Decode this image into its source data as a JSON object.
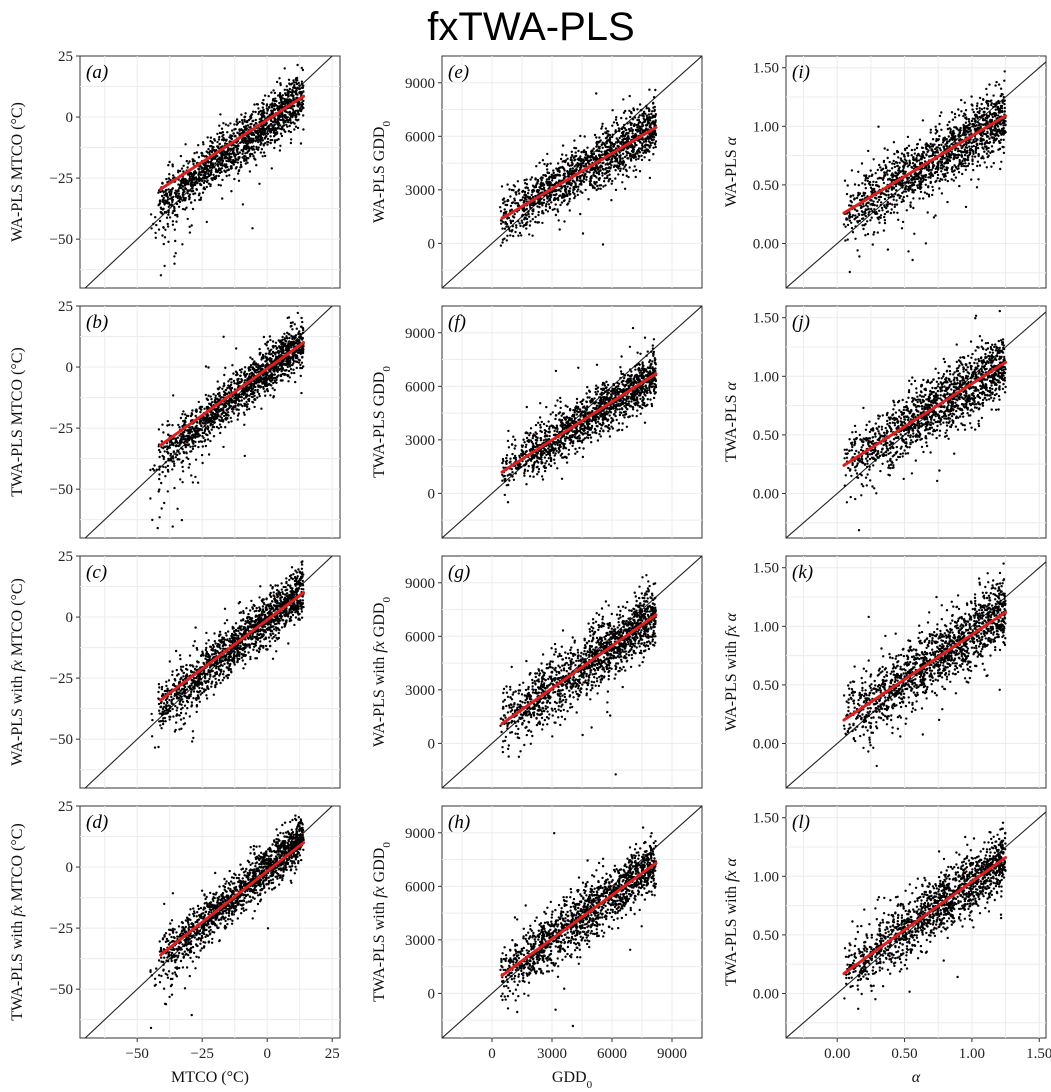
{
  "title": "fxTWA-PLS",
  "chart_data": [
    {
      "id": "a",
      "type": "scatter",
      "letter": "(a)",
      "ylabel_parts": [
        {
          "t": "WA-PLS MTCO (°C)"
        }
      ],
      "xlabel_parts": [],
      "xlim": [
        -72,
        28
      ],
      "ylim": [
        -70,
        25
      ],
      "xticks": [
        -50,
        -25,
        0,
        25
      ],
      "yticks": [
        -50,
        -25,
        0,
        25
      ],
      "show_xticks": false,
      "fit": {
        "x": [
          -41,
          14
        ],
        "y": [
          -29.5,
          8.5
        ]
      },
      "x_range": [
        -42,
        14
      ],
      "slope": 0.8,
      "intercept": -2.5,
      "spread": 5,
      "outlier_x": [
        -45,
        -25
      ]
    },
    {
      "id": "b",
      "type": "scatter",
      "letter": "(b)",
      "ylabel_parts": [
        {
          "t": "TWA-PLS MTCO (°C)"
        }
      ],
      "xlabel_parts": [],
      "xlim": [
        -72,
        28
      ],
      "ylim": [
        -70,
        25
      ],
      "xticks": [
        -50,
        -25,
        0,
        25
      ],
      "yticks": [
        -50,
        -25,
        0,
        25
      ],
      "show_xticks": false,
      "fit": {
        "x": [
          -41,
          14
        ],
        "y": [
          -32,
          10
        ]
      },
      "x_range": [
        -42,
        14
      ],
      "slope": 0.85,
      "intercept": -1.5,
      "spread": 4.5,
      "outlier_x": [
        -45,
        -25
      ]
    },
    {
      "id": "c",
      "type": "scatter",
      "letter": "(c)",
      "ylabel_parts": [
        {
          "t": "WA-PLS with "
        },
        {
          "t": "fx",
          "i": true
        },
        {
          "t": " MTCO (°C)"
        }
      ],
      "xlabel_parts": [],
      "xlim": [
        -72,
        28
      ],
      "ylim": [
        -70,
        25
      ],
      "xticks": [
        -50,
        -25,
        0,
        25
      ],
      "yticks": [
        -50,
        -25,
        0,
        25
      ],
      "show_xticks": false,
      "fit": {
        "x": [
          -41,
          14
        ],
        "y": [
          -34,
          10
        ]
      },
      "x_range": [
        -42,
        14
      ],
      "slope": 0.87,
      "intercept": -1,
      "spread": 5,
      "outlier_x": [
        -45,
        -25
      ]
    },
    {
      "id": "d",
      "type": "scatter",
      "letter": "(d)",
      "ylabel_parts": [
        {
          "t": "TWA-PLS with "
        },
        {
          "t": "fx",
          "i": true
        },
        {
          "t": " MTCO (°C)"
        }
      ],
      "xlabel_parts": [
        {
          "t": "MTCO (°C)"
        }
      ],
      "xlim": [
        -72,
        28
      ],
      "ylim": [
        -70,
        25
      ],
      "xticks": [
        -50,
        -25,
        0,
        25
      ],
      "yticks": [
        -50,
        -25,
        0,
        25
      ],
      "show_xticks": true,
      "fit": {
        "x": [
          -41,
          14
        ],
        "y": [
          -36,
          10
        ]
      },
      "x_range": [
        -42,
        14
      ],
      "slope": 0.9,
      "intercept": -0.5,
      "spread": 4.5,
      "outlier_x": [
        -45,
        -25
      ]
    },
    {
      "id": "e",
      "type": "scatter",
      "letter": "(e)",
      "ylabel_parts": [
        {
          "t": "WA-PLS GDD"
        },
        {
          "t": "0",
          "sub": true
        }
      ],
      "xlabel_parts": [],
      "xlim": [
        -2500,
        10500
      ],
      "ylim": [
        -2500,
        10500
      ],
      "xticks": [
        0,
        3000,
        6000,
        9000
      ],
      "yticks": [
        0,
        3000,
        6000,
        9000
      ],
      "show_xticks": false,
      "fit": {
        "x": [
          500,
          8200
        ],
        "y": [
          1400,
          6500
        ]
      },
      "x_range": [
        400,
        8200
      ],
      "slope": 0.66,
      "intercept": 1100,
      "spread": 750,
      "outlier_x": [
        0,
        0
      ]
    },
    {
      "id": "f",
      "type": "scatter",
      "letter": "(f)",
      "ylabel_parts": [
        {
          "t": "TWA-PLS GDD"
        },
        {
          "t": "0",
          "sub": true
        }
      ],
      "xlabel_parts": [],
      "xlim": [
        -2500,
        10500
      ],
      "ylim": [
        -2500,
        10500
      ],
      "xticks": [
        0,
        3000,
        6000,
        9000
      ],
      "yticks": [
        0,
        3000,
        6000,
        9000
      ],
      "show_xticks": false,
      "fit": {
        "x": [
          500,
          8200
        ],
        "y": [
          1200,
          6700
        ]
      },
      "x_range": [
        400,
        8200
      ],
      "slope": 0.71,
      "intercept": 850,
      "spread": 700,
      "outlier_x": [
        0,
        0
      ]
    },
    {
      "id": "g",
      "type": "scatter",
      "letter": "(g)",
      "ylabel_parts": [
        {
          "t": "WA-PLS with "
        },
        {
          "t": "fx",
          "i": true
        },
        {
          "t": " GDD"
        },
        {
          "t": "0",
          "sub": true
        }
      ],
      "xlabel_parts": [],
      "xlim": [
        -2500,
        10500
      ],
      "ylim": [
        -2500,
        10500
      ],
      "xticks": [
        0,
        3000,
        6000,
        9000
      ],
      "yticks": [
        0,
        3000,
        6000,
        9000
      ],
      "show_xticks": false,
      "fit": {
        "x": [
          500,
          8200
        ],
        "y": [
          1100,
          7200
        ]
      },
      "x_range": [
        400,
        8200
      ],
      "slope": 0.79,
      "intercept": 700,
      "spread": 850,
      "outlier_x": [
        0,
        0
      ]
    },
    {
      "id": "h",
      "type": "scatter",
      "letter": "(h)",
      "ylabel_parts": [
        {
          "t": "TWA-PLS with "
        },
        {
          "t": "fx",
          "i": true
        },
        {
          "t": " GDD"
        },
        {
          "t": "0",
          "sub": true
        }
      ],
      "xlabel_parts": [
        {
          "t": "GDD"
        },
        {
          "t": "0",
          "sub": true
        }
      ],
      "xlim": [
        -2500,
        10500
      ],
      "ylim": [
        -2500,
        10500
      ],
      "xticks": [
        0,
        3000,
        6000,
        9000
      ],
      "yticks": [
        0,
        3000,
        6000,
        9000
      ],
      "show_xticks": true,
      "fit": {
        "x": [
          500,
          8200
        ],
        "y": [
          1000,
          7300
        ]
      },
      "x_range": [
        400,
        8200
      ],
      "slope": 0.82,
      "intercept": 600,
      "spread": 800,
      "outlier_x": [
        0,
        0
      ]
    },
    {
      "id": "i",
      "type": "scatter",
      "letter": "(i)",
      "ylabel_parts": [
        {
          "t": "WA-PLS "
        },
        {
          "t": "α",
          "i": true
        }
      ],
      "xlabel_parts": [],
      "xlim": [
        -0.38,
        1.55
      ],
      "ylim": [
        -0.38,
        1.6
      ],
      "xticks": [
        0,
        0.5,
        1,
        1.5
      ],
      "xtick_labels": [
        "0.00",
        "0.50",
        "1.00",
        "1.50"
      ],
      "yticks": [
        0,
        0.5,
        1,
        1.5
      ],
      "ytick_labels": [
        "0.00",
        "0.50",
        "1.00",
        "1.50"
      ],
      "show_xticks": false,
      "fit": {
        "x": [
          0.05,
          1.25
        ],
        "y": [
          0.26,
          1.09
        ]
      },
      "x_range": [
        0.05,
        1.25
      ],
      "slope": 0.69,
      "intercept": 0.22,
      "spread": 0.13,
      "outlier_x": [
        0,
        0
      ]
    },
    {
      "id": "j",
      "type": "scatter",
      "letter": "(j)",
      "ylabel_parts": [
        {
          "t": "TWA-PLS "
        },
        {
          "t": "α",
          "i": true
        }
      ],
      "xlabel_parts": [],
      "xlim": [
        -0.38,
        1.55
      ],
      "ylim": [
        -0.38,
        1.6
      ],
      "xticks": [
        0,
        0.5,
        1,
        1.5
      ],
      "xtick_labels": [
        "0.00",
        "0.50",
        "1.00",
        "1.50"
      ],
      "yticks": [
        0,
        0.5,
        1,
        1.5
      ],
      "ytick_labels": [
        "0.00",
        "0.50",
        "1.00",
        "1.50"
      ],
      "show_xticks": false,
      "fit": {
        "x": [
          0.05,
          1.25
        ],
        "y": [
          0.24,
          1.12
        ]
      },
      "x_range": [
        0.05,
        1.25
      ],
      "slope": 0.73,
      "intercept": 0.2,
      "spread": 0.13,
      "outlier_x": [
        0,
        0
      ]
    },
    {
      "id": "k",
      "type": "scatter",
      "letter": "(k)",
      "ylabel_parts": [
        {
          "t": "WA-PLS with "
        },
        {
          "t": "fx",
          "i": true
        },
        {
          "t": " "
        },
        {
          "t": "α",
          "i": true
        }
      ],
      "xlabel_parts": [],
      "xlim": [
        -0.38,
        1.55
      ],
      "ylim": [
        -0.38,
        1.6
      ],
      "xticks": [
        0,
        0.5,
        1,
        1.5
      ],
      "xtick_labels": [
        "0.00",
        "0.50",
        "1.00",
        "1.50"
      ],
      "yticks": [
        0,
        0.5,
        1,
        1.5
      ],
      "ytick_labels": [
        "0.00",
        "0.50",
        "1.00",
        "1.50"
      ],
      "show_xticks": false,
      "fit": {
        "x": [
          0.05,
          1.25
        ],
        "y": [
          0.2,
          1.12
        ]
      },
      "x_range": [
        0.05,
        1.25
      ],
      "slope": 0.77,
      "intercept": 0.16,
      "spread": 0.14,
      "outlier_x": [
        0,
        0
      ]
    },
    {
      "id": "l",
      "type": "scatter",
      "letter": "(l)",
      "ylabel_parts": [
        {
          "t": "TWA-PLS with "
        },
        {
          "t": "fx",
          "i": true
        },
        {
          "t": " "
        },
        {
          "t": "α",
          "i": true
        }
      ],
      "xlabel_parts": [
        {
          "t": "α",
          "i": true
        }
      ],
      "xlim": [
        -0.38,
        1.55
      ],
      "ylim": [
        -0.38,
        1.6
      ],
      "xticks": [
        0,
        0.5,
        1,
        1.5
      ],
      "xtick_labels": [
        "0.00",
        "0.50",
        "1.00",
        "1.50"
      ],
      "yticks": [
        0,
        0.5,
        1,
        1.5
      ],
      "ytick_labels": [
        "0.00",
        "0.50",
        "1.00",
        "1.50"
      ],
      "show_xticks": true,
      "fit": {
        "x": [
          0.05,
          1.25
        ],
        "y": [
          0.17,
          1.16
        ]
      },
      "x_range": [
        0.05,
        1.25
      ],
      "slope": 0.82,
      "intercept": 0.13,
      "spread": 0.13,
      "outlier_x": [
        0,
        0
      ]
    }
  ]
}
